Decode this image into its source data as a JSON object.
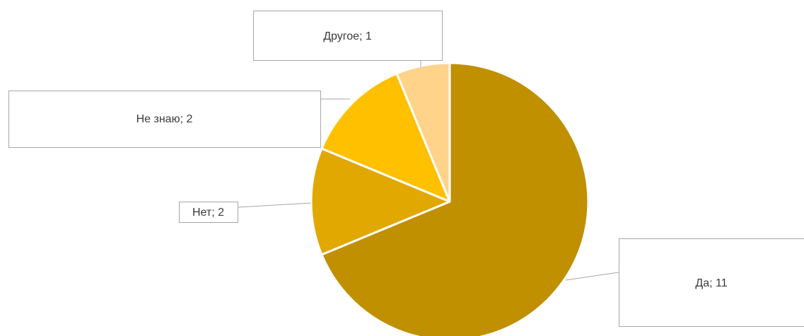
{
  "chart_data": {
    "type": "pie",
    "categories": [
      "Да",
      "Нет",
      "Не знаю",
      "Другое"
    ],
    "values": [
      11,
      2,
      2,
      1
    ],
    "labels": [
      "Да; 11",
      "Нет; 2",
      "Не знаю; 2",
      "Другое; 1"
    ],
    "colors": [
      "#C09000",
      "#E0A800",
      "#FFC000",
      "#FFD38A"
    ],
    "start_angle_deg": 0,
    "direction": "clockwise",
    "legend": "none",
    "title": ""
  }
}
